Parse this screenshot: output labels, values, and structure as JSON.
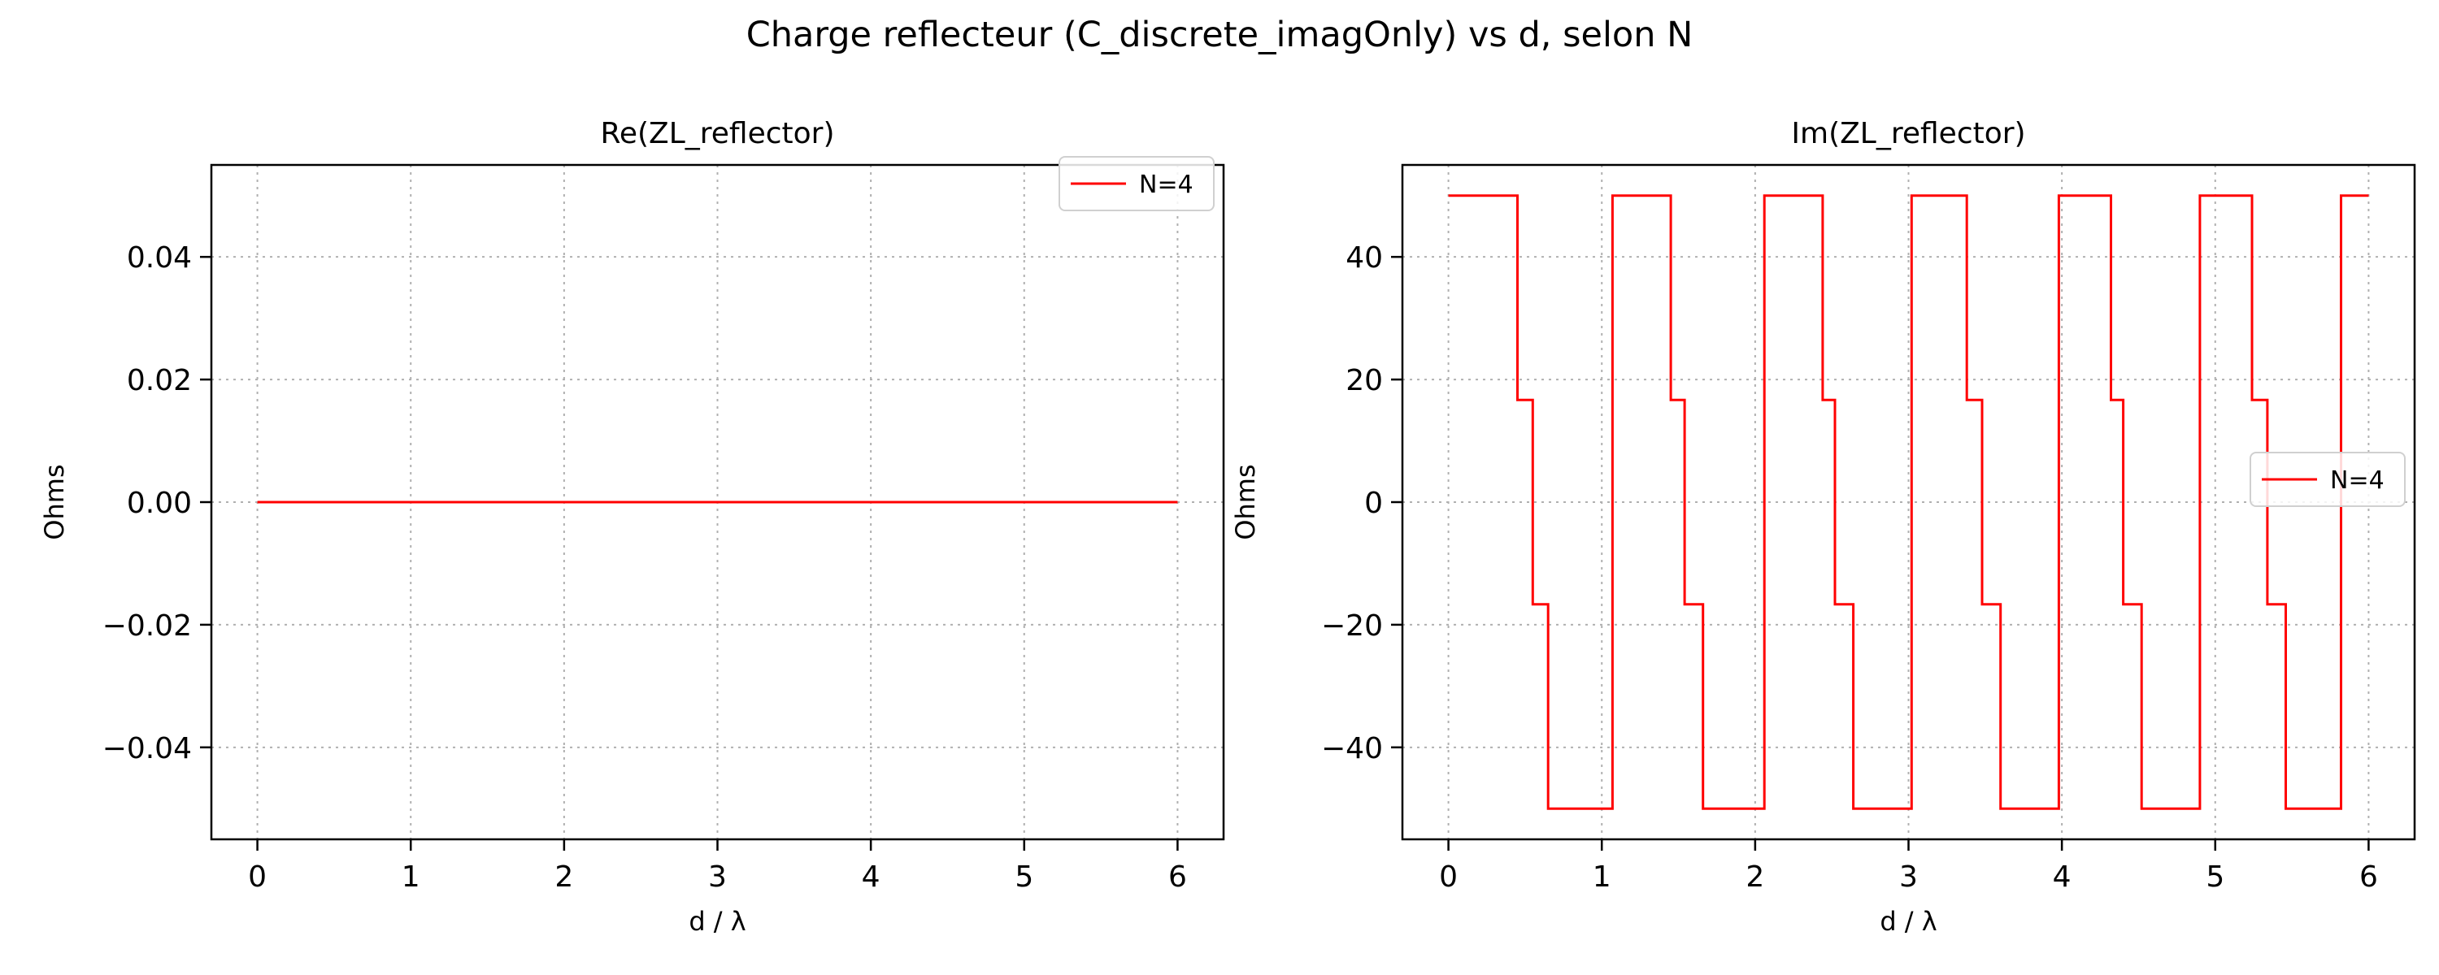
{
  "figure": {
    "title": "Charge reflecteur (C_discrete_imagOnly) vs d, selon N"
  },
  "chart_data": [
    {
      "type": "line",
      "title": "Re(ZL_reflector)",
      "xlabel": "d / λ",
      "ylabel": "Ohms",
      "xlim": [
        -0.3,
        6.3
      ],
      "ylim": [
        -0.055,
        0.055
      ],
      "xticks": [
        0,
        1,
        2,
        3,
        4,
        5,
        6
      ],
      "xtick_labels": [
        "0",
        "1",
        "2",
        "3",
        "4",
        "5",
        "6"
      ],
      "yticks": [
        -0.04,
        -0.02,
        0.0,
        0.02,
        0.04
      ],
      "ytick_labels": [
        "−0.04",
        "−0.02",
        "0.00",
        "0.02",
        "0.04"
      ],
      "grid": true,
      "legend_position": "upper-right",
      "series": [
        {
          "name": "N=4",
          "color": "#ff0000",
          "x": [
            0,
            6
          ],
          "y": [
            0,
            0
          ]
        }
      ]
    },
    {
      "type": "line",
      "title": "Im(ZL_reflector)",
      "xlabel": "d / λ",
      "ylabel": "Ohms",
      "xlim": [
        -0.3,
        6.3
      ],
      "ylim": [
        -55,
        55
      ],
      "xticks": [
        0,
        1,
        2,
        3,
        4,
        5,
        6
      ],
      "xtick_labels": [
        "0",
        "1",
        "2",
        "3",
        "4",
        "5",
        "6"
      ],
      "yticks": [
        -40,
        -20,
        0,
        20,
        40
      ],
      "ytick_labels": [
        "−40",
        "−20",
        "0",
        "20",
        "40"
      ],
      "grid": true,
      "legend_position": "center-right",
      "series": [
        {
          "name": "N=4",
          "color": "#ff0000",
          "x": [
            0,
            0.45,
            0.45,
            0.55,
            0.55,
            0.65,
            0.65,
            1.07,
            1.07,
            1.45,
            1.45,
            1.54,
            1.54,
            1.66,
            1.66,
            2.06,
            2.06,
            2.44,
            2.44,
            2.52,
            2.52,
            2.64,
            2.64,
            3.02,
            3.02,
            3.38,
            3.38,
            3.48,
            3.48,
            3.6,
            3.6,
            3.98,
            3.98,
            4.32,
            4.32,
            4.4,
            4.4,
            4.52,
            4.52,
            4.9,
            4.9,
            5.24,
            5.24,
            5.34,
            5.34,
            5.46,
            5.46,
            5.82,
            5.82,
            6.0
          ],
          "y": [
            50,
            50,
            16.67,
            16.67,
            -16.67,
            -16.67,
            -50,
            -50,
            50,
            50,
            16.67,
            16.67,
            -16.67,
            -16.67,
            -50,
            -50,
            50,
            50,
            16.67,
            16.67,
            -16.67,
            -16.67,
            -50,
            -50,
            50,
            50,
            16.67,
            16.67,
            -16.67,
            -16.67,
            -50,
            -50,
            50,
            50,
            16.67,
            16.67,
            -16.67,
            -16.67,
            -50,
            -50,
            50,
            50,
            16.67,
            16.67,
            -16.67,
            -16.67,
            -50,
            -50,
            50,
            50
          ]
        }
      ]
    }
  ]
}
